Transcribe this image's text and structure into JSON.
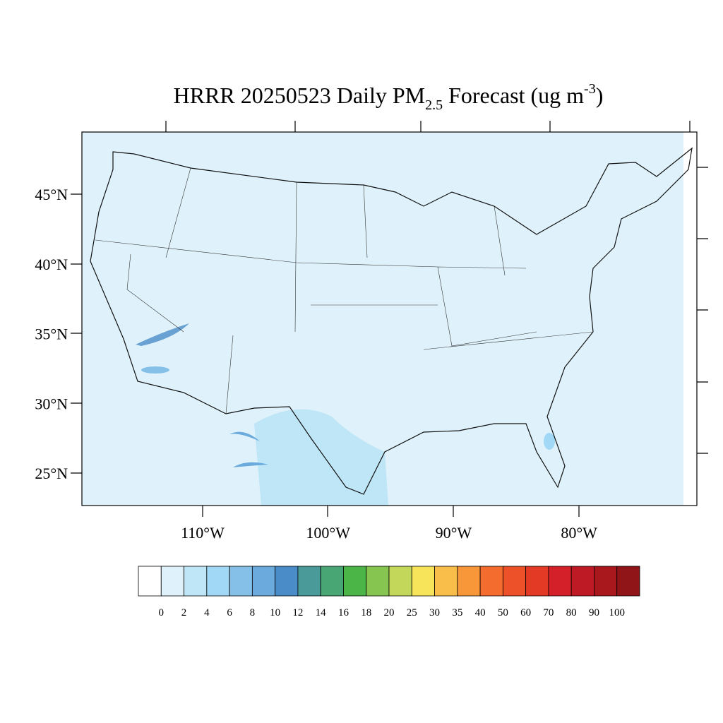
{
  "map": {
    "title": {
      "main": "HRRR 20250523 Daily PM",
      "sub": "2.5",
      "mid": " Forecast (ug m",
      "sup": "-3",
      "end": ")"
    },
    "lat_labels": [
      "45°N",
      "40°N",
      "35°N",
      "30°N",
      "25°N"
    ],
    "lon_labels": [
      "110°W",
      "100°W",
      "90°W",
      "80°W"
    ]
  },
  "colorbar": {
    "levels": [
      0,
      2,
      4,
      6,
      8,
      10,
      12,
      14,
      16,
      18,
      20,
      25,
      30,
      35,
      40,
      50,
      60,
      70,
      80,
      90,
      100
    ],
    "colors": [
      "#ffffff",
      "#dff2fb",
      "#bfe6f7",
      "#a0d8f5",
      "#85c0e8",
      "#6aaadc",
      "#4a8cc8",
      "#4a9a9a",
      "#48a675",
      "#4bb548",
      "#86c550",
      "#c3d85a",
      "#f7e45a",
      "#f9be4a",
      "#f8973a",
      "#f46c2e",
      "#ed5129",
      "#e33a26",
      "#d42129",
      "#be1a25",
      "#a8181d",
      "#8f1519"
    ]
  }
}
